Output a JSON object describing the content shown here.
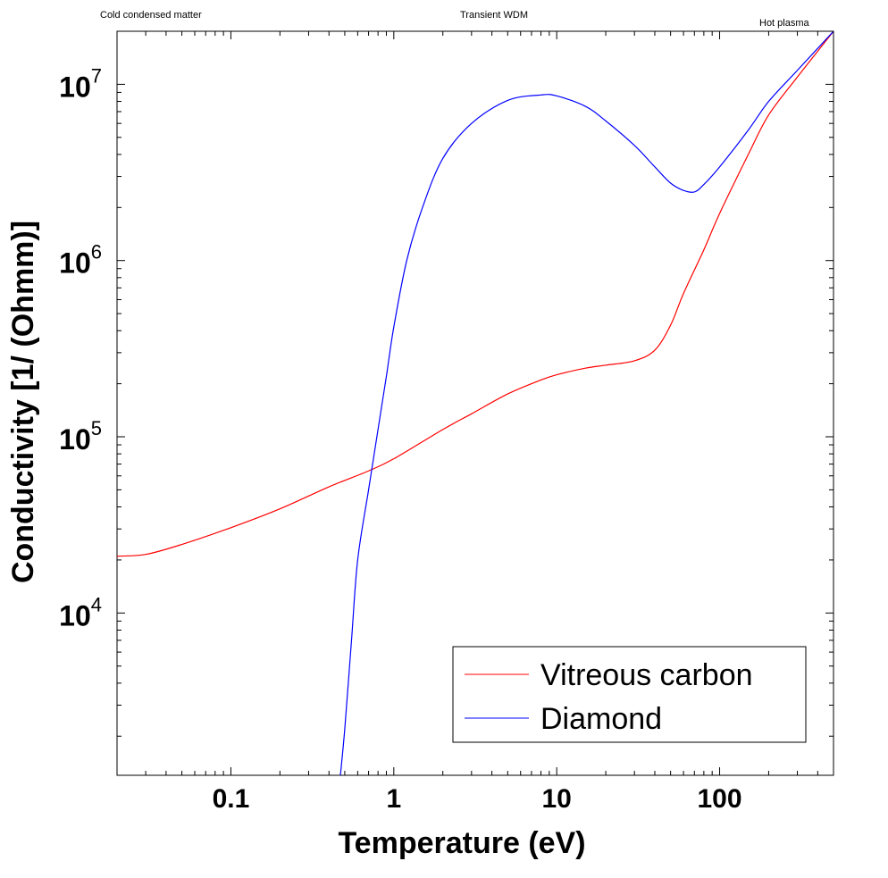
{
  "chart_data": {
    "type": "line",
    "title": "",
    "xlabel": "Temperature (eV)",
    "ylabel": "Conductivity [1/ (Ohmm)]",
    "xscale": "log",
    "yscale": "log",
    "xlim": [
      0.02,
      500
    ],
    "ylim": [
      1200,
      20000000
    ],
    "x_ticks": [
      {
        "value": 0.1,
        "label": "0.1"
      },
      {
        "value": 1,
        "label": "1"
      },
      {
        "value": 10,
        "label": "10"
      },
      {
        "value": 100,
        "label": "100"
      }
    ],
    "y_ticks": [
      {
        "value": 10000,
        "base": "10",
        "exp": "4"
      },
      {
        "value": 100000,
        "base": "10",
        "exp": "5"
      },
      {
        "value": 1000000,
        "base": "10",
        "exp": "6"
      },
      {
        "value": 10000000,
        "base": "10",
        "exp": "7"
      }
    ],
    "grid": false,
    "legend_position": "bottom-right",
    "region_labels": [
      {
        "text": "Cold condensed matter"
      },
      {
        "text": "Transient WDM"
      },
      {
        "text": "Hot plasma"
      }
    ],
    "series": [
      {
        "name": "Vitreous carbon",
        "color": "#ff0000",
        "x": [
          0.02,
          0.03,
          0.05,
          0.1,
          0.2,
          0.4,
          0.7,
          1,
          2,
          3,
          5,
          8,
          10,
          15,
          20,
          30,
          40,
          50,
          60,
          80,
          100,
          150,
          200,
          300,
          500
        ],
        "y": [
          21000,
          21500,
          24500,
          30500,
          39000,
          52000,
          64000,
          75000,
          110000,
          135000,
          175000,
          210000,
          225000,
          245000,
          255000,
          270000,
          310000,
          430000,
          650000,
          1150000,
          1850000,
          4000000,
          6700000,
          11000000,
          20000000
        ]
      },
      {
        "name": "Diamond",
        "color": "#0000ff",
        "x": [
          0.47,
          0.5,
          0.55,
          0.6,
          0.7,
          0.8,
          0.9,
          1,
          1.2,
          1.5,
          2,
          3,
          5,
          8,
          10,
          15,
          20,
          30,
          40,
          50,
          60,
          70,
          80,
          100,
          150,
          200,
          300,
          500
        ],
        "y": [
          1200,
          2200,
          7000,
          20000,
          50000,
          110000,
          220000,
          420000,
          1000000,
          2000000,
          3800000,
          6000000,
          8100000,
          8700000,
          8600000,
          7500000,
          6200000,
          4500000,
          3400000,
          2750000,
          2500000,
          2450000,
          2700000,
          3400000,
          5500000,
          8000000,
          12000000,
          20000000
        ]
      }
    ]
  }
}
